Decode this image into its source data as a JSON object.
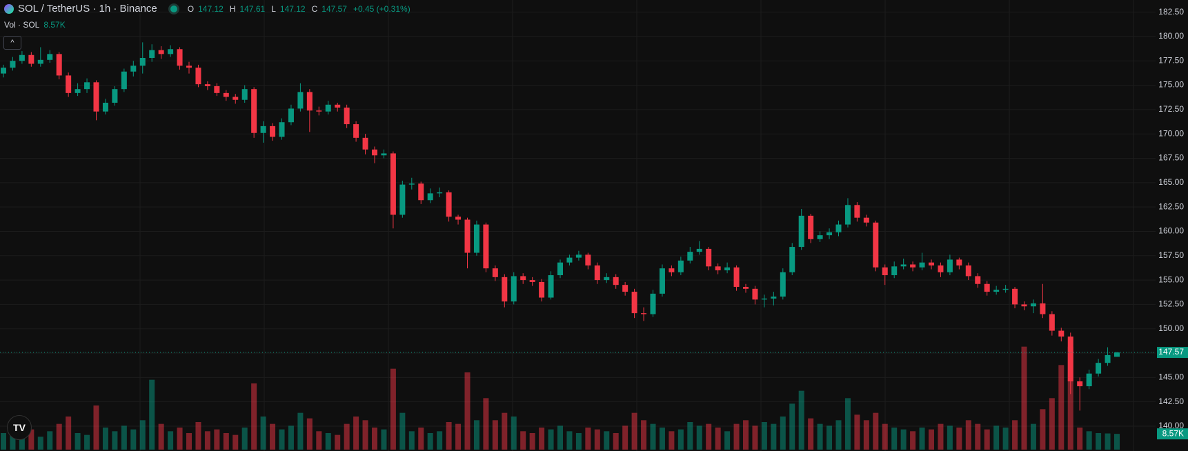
{
  "chart_data": {
    "type": "candlestick",
    "title": "SOL / TetherUS · 1h · Binance",
    "ohlc_labels": [
      "O",
      "H",
      "L",
      "C"
    ],
    "change_label": "+0.45 (+0.31%)",
    "volume_title": "Vol · SOL",
    "last_volume_label": "8.57K",
    "up_color": "#089981",
    "down_color": "#f23645",
    "grid": true,
    "ylim": [
      140,
      182.5
    ],
    "yticks": [
      {
        "value": 140,
        "label": "140.00"
      },
      {
        "value": 142.5,
        "label": "142.50"
      },
      {
        "value": 145,
        "label": "145.00"
      },
      {
        "value": 147.5,
        "label": "147.50"
      },
      {
        "value": 150,
        "label": "150.00"
      },
      {
        "value": 152.5,
        "label": "152.50"
      },
      {
        "value": 155,
        "label": "155.00"
      },
      {
        "value": 157.5,
        "label": "157.50"
      },
      {
        "value": 160,
        "label": "160.00"
      },
      {
        "value": 162.5,
        "label": "162.50"
      },
      {
        "value": 165,
        "label": "165.00"
      },
      {
        "value": 167.5,
        "label": "167.50"
      },
      {
        "value": 170,
        "label": "170.00"
      },
      {
        "value": 172.5,
        "label": "172.50"
      },
      {
        "value": 175,
        "label": "175.00"
      },
      {
        "value": 177.5,
        "label": "177.50"
      },
      {
        "value": 180,
        "label": "180.00"
      },
      {
        "value": 182.5,
        "label": "182.50"
      }
    ],
    "y2lim": [
      0,
      60000
    ],
    "open": [
      176.2,
      176.8,
      177.5,
      178.1,
      177.2,
      177.6,
      178.2,
      176.0,
      174.2,
      174.6,
      175.3,
      172.3,
      173.2,
      174.6,
      176.4,
      177.0,
      177.8,
      178.6,
      178.2,
      178.7,
      177.0,
      176.8,
      175.1,
      174.9,
      174.2,
      173.8,
      173.5,
      174.6,
      170.1,
      170.8,
      169.7,
      171.2,
      172.6,
      174.3,
      172.4,
      172.3,
      173.0,
      172.7,
      171.0,
      169.6,
      168.4,
      167.8,
      168.0,
      161.7,
      164.8,
      164.9,
      163.2,
      163.9,
      164.0,
      161.5,
      161.2,
      157.8,
      160.7,
      156.2,
      155.3,
      152.8,
      155.4,
      155.0,
      154.8,
      153.2,
      155.5,
      156.8,
      157.3,
      157.6,
      156.5,
      155.0,
      155.3,
      154.5,
      153.8,
      151.6,
      151.5,
      153.6,
      156.2,
      155.8,
      157.0,
      157.9,
      158.2,
      156.4,
      156.0,
      156.3,
      154.3,
      154.1,
      153.0,
      153.1,
      153.3,
      155.8,
      158.4,
      161.6,
      159.2,
      159.6,
      159.9,
      160.7,
      162.7,
      161.4,
      160.9,
      156.3,
      155.5,
      156.4,
      156.6,
      156.3,
      156.8,
      156.5,
      155.8,
      157.1,
      156.5,
      155.4,
      154.6,
      153.8,
      154.0,
      154.1,
      152.5,
      152.3,
      152.6,
      151.5,
      149.8,
      149.2,
      144.6,
      144.1,
      145.4,
      146.5,
      147.12
    ],
    "high": [
      177.1,
      177.9,
      178.5,
      178.4,
      178.9,
      178.6,
      178.4,
      176.3,
      175.2,
      175.7,
      175.5,
      173.6,
      174.9,
      176.7,
      177.5,
      179.4,
      179.2,
      179.0,
      179.1,
      178.9,
      177.4,
      177.1,
      175.4,
      175.2,
      174.5,
      174.1,
      175.0,
      174.8,
      171.3,
      171.1,
      171.6,
      173.0,
      175.2,
      174.6,
      172.8,
      173.4,
      173.2,
      173.0,
      171.3,
      170.0,
      168.7,
      168.4,
      168.2,
      165.2,
      165.5,
      165.1,
      164.4,
      164.5,
      164.2,
      161.7,
      161.4,
      161.1,
      160.9,
      156.5,
      155.6,
      155.8,
      155.7,
      155.3,
      155.1,
      155.9,
      157.1,
      157.6,
      158.0,
      157.8,
      156.8,
      155.7,
      155.6,
      154.8,
      154.1,
      152.2,
      154.0,
      156.6,
      156.5,
      157.4,
      158.4,
      159.0,
      158.4,
      156.7,
      156.8,
      156.5,
      154.6,
      154.4,
      153.5,
      153.8,
      156.2,
      158.8,
      162.3,
      161.8,
      160.0,
      160.3,
      161.1,
      163.4,
      163.0,
      161.7,
      161.1,
      156.6,
      156.9,
      157.2,
      156.9,
      157.8,
      157.1,
      156.8,
      157.6,
      157.3,
      156.8,
      155.7,
      154.9,
      154.4,
      154.5,
      154.3,
      152.8,
      153.0,
      154.6,
      151.8,
      150.1,
      149.6,
      145.0,
      145.8,
      146.9,
      148.1,
      147.61
    ],
    "low": [
      175.8,
      176.5,
      177.2,
      176.9,
      176.9,
      177.3,
      175.6,
      173.8,
      173.9,
      174.2,
      171.4,
      172.0,
      172.9,
      174.3,
      175.9,
      176.2,
      177.4,
      177.7,
      177.9,
      176.6,
      176.2,
      174.8,
      174.5,
      173.9,
      173.4,
      173.1,
      173.2,
      169.6,
      169.1,
      169.3,
      169.4,
      170.9,
      172.3,
      170.2,
      171.9,
      172.0,
      172.3,
      170.6,
      169.2,
      167.9,
      167.0,
      167.5,
      160.3,
      161.4,
      164.3,
      162.8,
      162.9,
      163.5,
      161.0,
      160.7,
      156.2,
      157.5,
      155.8,
      154.9,
      152.2,
      152.5,
      154.6,
      154.4,
      152.8,
      153.0,
      155.2,
      156.5,
      157.0,
      156.1,
      154.6,
      154.7,
      154.1,
      153.4,
      151.1,
      150.8,
      151.2,
      153.3,
      155.4,
      155.5,
      156.7,
      157.6,
      156.0,
      155.6,
      155.7,
      153.9,
      153.7,
      152.5,
      152.2,
      152.4,
      153.0,
      155.5,
      158.1,
      158.8,
      158.9,
      159.2,
      159.5,
      160.4,
      161.0,
      160.5,
      155.9,
      154.5,
      155.2,
      156.1,
      155.9,
      156.0,
      156.1,
      155.3,
      155.5,
      156.1,
      155.0,
      154.2,
      153.4,
      153.5,
      153.7,
      152.1,
      151.9,
      151.6,
      151.1,
      149.3,
      148.7,
      143.3,
      141.6,
      143.8,
      145.1,
      146.2,
      147.12
    ],
    "close": [
      176.8,
      177.5,
      178.1,
      177.2,
      177.6,
      178.2,
      176.0,
      174.2,
      174.6,
      175.3,
      172.3,
      173.2,
      174.6,
      176.4,
      177.0,
      177.8,
      178.6,
      178.2,
      178.7,
      177.0,
      176.8,
      175.1,
      174.9,
      174.2,
      173.8,
      173.5,
      174.6,
      170.1,
      170.8,
      169.7,
      171.2,
      172.6,
      174.3,
      172.4,
      172.3,
      173.0,
      172.7,
      171.0,
      169.6,
      168.4,
      167.8,
      168.0,
      161.7,
      164.8,
      164.9,
      163.2,
      163.9,
      164.0,
      161.5,
      161.2,
      157.8,
      160.7,
      156.2,
      155.3,
      152.8,
      155.4,
      155.0,
      154.8,
      153.2,
      155.5,
      156.8,
      157.3,
      157.6,
      156.5,
      155.0,
      155.3,
      154.5,
      153.8,
      151.6,
      151.5,
      153.6,
      156.2,
      155.8,
      157.0,
      157.9,
      158.2,
      156.4,
      156.0,
      156.3,
      154.3,
      154.1,
      153.0,
      153.1,
      153.3,
      155.8,
      158.4,
      161.6,
      159.2,
      159.6,
      159.9,
      160.7,
      162.7,
      161.4,
      160.9,
      156.3,
      155.5,
      156.4,
      156.6,
      156.3,
      156.8,
      156.5,
      155.8,
      157.1,
      156.5,
      155.4,
      154.6,
      153.8,
      154.0,
      154.1,
      152.5,
      152.3,
      152.6,
      151.5,
      149.8,
      149.2,
      144.6,
      144.1,
      145.4,
      146.5,
      147.3,
      147.57
    ],
    "volume": [
      9000,
      12000,
      8000,
      11000,
      7000,
      10000,
      14000,
      18000,
      9000,
      8000,
      24000,
      12000,
      10000,
      13000,
      11000,
      16000,
      38000,
      14000,
      10000,
      12000,
      9000,
      15000,
      10000,
      11000,
      9000,
      8000,
      12000,
      36000,
      18000,
      14000,
      11000,
      13000,
      20000,
      17000,
      10000,
      9000,
      8000,
      14000,
      18000,
      16000,
      12000,
      11000,
      44000,
      20000,
      10000,
      12000,
      9000,
      10000,
      15000,
      14000,
      42000,
      16000,
      28000,
      16000,
      20000,
      18000,
      10000,
      9000,
      12000,
      11000,
      13000,
      10000,
      9000,
      12000,
      11000,
      10000,
      9000,
      13000,
      20000,
      16000,
      14000,
      12000,
      10000,
      11000,
      15000,
      13000,
      14000,
      12000,
      10000,
      14000,
      16000,
      13000,
      15000,
      14000,
      18000,
      25000,
      32000,
      17000,
      14000,
      13000,
      16000,
      28000,
      19000,
      16000,
      20000,
      14000,
      12000,
      11000,
      10000,
      12000,
      11000,
      14000,
      13000,
      12000,
      16000,
      14000,
      11000,
      13000,
      12000,
      16000,
      56000,
      14000,
      22000,
      28000,
      46000,
      56000,
      12000,
      10000,
      9000,
      8800,
      8570
    ]
  }
}
